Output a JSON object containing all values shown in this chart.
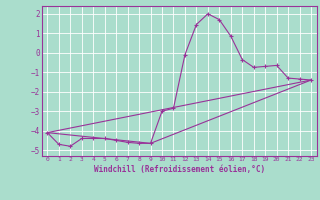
{
  "xlabel": "Windchill (Refroidissement éolien,°C)",
  "bg_color": "#aaddcc",
  "line_color": "#993399",
  "grid_color": "#ffffff",
  "xlim": [
    -0.5,
    23.5
  ],
  "ylim": [
    -5.3,
    2.4
  ],
  "yticks": [
    2,
    1,
    0,
    -1,
    -2,
    -3,
    -4,
    -5
  ],
  "xticks": [
    0,
    1,
    2,
    3,
    4,
    5,
    6,
    7,
    8,
    9,
    10,
    11,
    12,
    13,
    14,
    15,
    16,
    17,
    18,
    19,
    20,
    21,
    22,
    23
  ],
  "series1_x": [
    0,
    1,
    2,
    3,
    4,
    5,
    6,
    7,
    8,
    9,
    10,
    11,
    12,
    13,
    14,
    15,
    16,
    17,
    18,
    19,
    20,
    21,
    22,
    23
  ],
  "series1_y": [
    -4.1,
    -4.7,
    -4.8,
    -4.4,
    -4.4,
    -4.4,
    -4.5,
    -4.6,
    -4.65,
    -4.65,
    -3.0,
    -2.85,
    -0.1,
    1.45,
    2.0,
    1.7,
    0.85,
    -0.35,
    -0.75,
    -0.7,
    -0.65,
    -1.3,
    -1.35,
    -1.4
  ],
  "line1_x": [
    0,
    23
  ],
  "line1_y": [
    -4.1,
    -1.4
  ],
  "line2_x": [
    0,
    9,
    23
  ],
  "line2_y": [
    -4.1,
    -4.65,
    -1.4
  ]
}
